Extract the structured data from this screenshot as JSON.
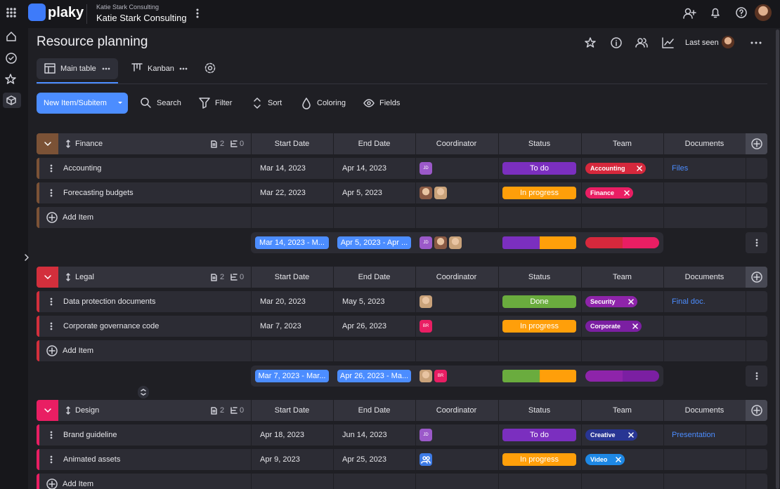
{
  "header": {
    "logo": "plaky",
    "workspace_small": "Katie Stark Consulting",
    "workspace": "Katie Stark Consulting"
  },
  "board": {
    "title": "Resource planning",
    "last_seen": "Last seen"
  },
  "views": [
    {
      "label": "Main table",
      "active": true
    },
    {
      "label": "Kanban",
      "active": false
    }
  ],
  "toolbar": {
    "new_item": "New Item/Subitem",
    "actions": [
      "Search",
      "Filter",
      "Sort",
      "Coloring",
      "Fields"
    ]
  },
  "columns": [
    "Start Date",
    "End Date",
    "Coordinator",
    "Status",
    "Team",
    "Documents"
  ],
  "add_item": "Add Item",
  "groups": [
    {
      "name": "Finance",
      "color": "#7b5236",
      "items_count": "2",
      "subitems_count": "0",
      "items": [
        {
          "name": "Accounting",
          "start": "Mar 14, 2023",
          "end": "Apr 14, 2023",
          "coordinator": [
            {
              "initials": "JD",
              "color": "#9b59c9"
            }
          ],
          "status": "To do",
          "status_color": "#7b2fbf",
          "team": "Accounting",
          "team_color": "#d6283c",
          "documents": "Files"
        },
        {
          "name": "Forecasting budgets",
          "start": "Mar 22, 2023",
          "end": "Apr 5, 2023",
          "coordinator": [
            {
              "photo": "#8a5a44"
            },
            {
              "photo": "#c9a27a"
            }
          ],
          "status": "In progress",
          "status_color": "#ff9f0a",
          "team": "Finance",
          "team_color": "#e91e63"
        }
      ],
      "summary": {
        "start": "Mar 14, 2023 - M...",
        "end": "Apr 5, 2023 - Apr ..."
      }
    },
    {
      "name": "Legal",
      "color": "#d32f3c",
      "items_count": "2",
      "subitems_count": "0",
      "items": [
        {
          "name": "Data protection documents",
          "start": "Mar 20, 2023",
          "end": "May 5, 2023",
          "coordinator": [
            {
              "photo": "#c9a27a"
            }
          ],
          "status": "Done",
          "status_color": "#6aac3e",
          "team": "Security",
          "team_color": "#8e24aa",
          "documents": "Final doc."
        },
        {
          "name": "Corporate governance code",
          "start": "Mar 7, 2023",
          "end": "Apr 26, 2023",
          "coordinator": [
            {
              "initials": "BR",
              "color": "#e91e63"
            }
          ],
          "status": "In progress",
          "status_color": "#ff9f0a",
          "team": "Corporate",
          "team_color": "#7b1fa2"
        }
      ],
      "summary": {
        "start": "Mar 7, 2023 - Mar...",
        "end": "Apr 26, 2023 - Ma..."
      }
    },
    {
      "name": "Design",
      "color": "#e91e63",
      "items_count": "2",
      "subitems_count": "0",
      "items": [
        {
          "name": "Brand guideline",
          "start": "Apr 18, 2023",
          "end": "Jun 14, 2023",
          "coordinator": [
            {
              "initials": "JD",
              "color": "#9b59c9"
            }
          ],
          "status": "To do",
          "status_color": "#7b2fbf",
          "team": "Creative",
          "team_color": "#283593",
          "documents": "Presentation"
        },
        {
          "name": "Animated assets",
          "start": "Apr 9, 2023",
          "end": "Apr 25, 2023",
          "coordinator": [
            {
              "icon": "group",
              "color": "#3d7be6"
            }
          ],
          "status": "In progress",
          "status_color": "#ff9f0a",
          "team": "Video",
          "team_color": "#1e88e5"
        }
      ]
    }
  ]
}
